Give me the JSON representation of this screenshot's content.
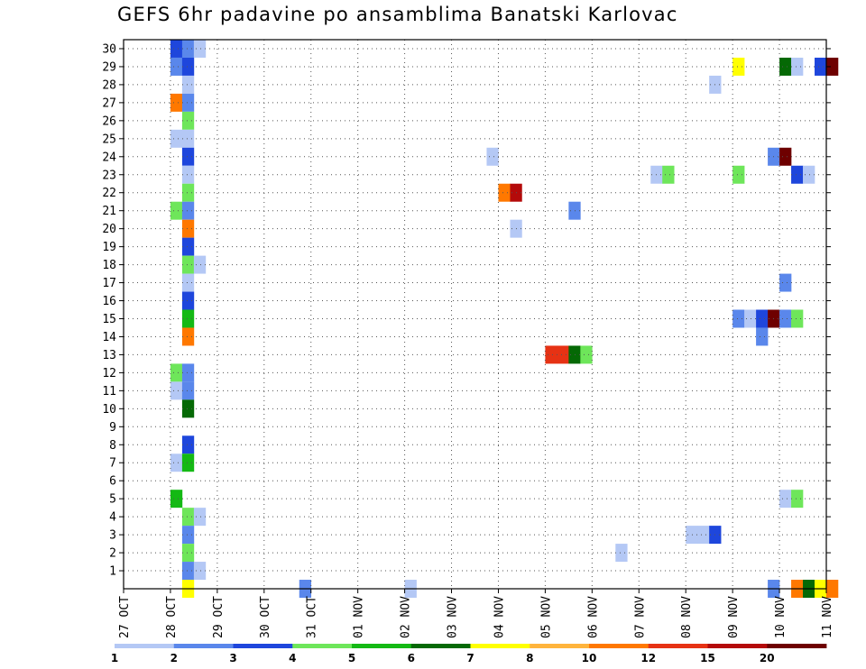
{
  "chart_data": {
    "type": "heatmap",
    "title": "GEFS 6hr padavine po ansamblima Banatski Karlovac",
    "x_tick_labels": [
      "27 OCT",
      "28 OCT",
      "29 OCT",
      "30 OCT",
      "31 OCT",
      "01 NOV",
      "02 NOV",
      "03 NOV",
      "04 NOV",
      "05 NOV",
      "06 NOV",
      "07 NOV",
      "08 NOV",
      "09 NOV",
      "10 NOV",
      "11 NOV"
    ],
    "y_tick_labels": [
      "1",
      "2",
      "3",
      "4",
      "5",
      "6",
      "7",
      "8",
      "9",
      "10",
      "11",
      "12",
      "13",
      "14",
      "15",
      "16",
      "17",
      "18",
      "19",
      "20",
      "21",
      "22",
      "23",
      "24",
      "25",
      "26",
      "27",
      "28",
      "29",
      "30"
    ],
    "xlim": [
      "27 OCT 00Z",
      "11 NOV 00Z"
    ],
    "ylim": [
      0,
      30
    ],
    "time_step_hours": 6,
    "grid": true,
    "legend": {
      "placement": "bottom",
      "labels": [
        "1",
        "2",
        "3",
        "4",
        "5",
        "6",
        "7",
        "8",
        "10",
        "12",
        "15",
        "20"
      ],
      "colors": [
        "#b4c8f5",
        "#5a87eb",
        "#1e46dc",
        "#6ee65a",
        "#14b914",
        "#056905",
        "#ffff00",
        "#ffb43c",
        "#ff7800",
        "#e63214",
        "#b40a0a",
        "#6e0000"
      ]
    },
    "cells": [
      [
        4,
        30,
        3
      ],
      [
        5,
        30,
        2
      ],
      [
        6,
        30,
        1
      ],
      [
        4,
        29,
        2
      ],
      [
        5,
        29,
        3
      ],
      [
        5,
        28,
        1
      ],
      [
        4,
        27,
        9
      ],
      [
        5,
        27,
        2
      ],
      [
        5,
        26,
        4
      ],
      [
        4,
        25,
        1
      ],
      [
        5,
        25,
        1
      ],
      [
        5,
        24,
        3
      ],
      [
        5,
        23,
        1
      ],
      [
        5,
        22,
        4
      ],
      [
        4,
        21,
        4
      ],
      [
        5,
        21,
        2
      ],
      [
        5,
        20,
        9
      ],
      [
        5,
        19,
        3
      ],
      [
        5,
        18,
        4
      ],
      [
        6,
        18,
        1
      ],
      [
        5,
        17,
        1
      ],
      [
        5,
        16,
        3
      ],
      [
        5,
        15,
        5
      ],
      [
        5,
        14,
        9
      ],
      [
        4,
        12,
        4
      ],
      [
        5,
        12,
        2
      ],
      [
        4,
        11,
        1
      ],
      [
        5,
        11,
        2
      ],
      [
        5,
        10,
        6
      ],
      [
        5,
        8,
        3
      ],
      [
        4,
        7,
        1
      ],
      [
        5,
        7,
        5
      ],
      [
        4,
        5,
        5
      ],
      [
        5,
        4,
        4
      ],
      [
        6,
        4,
        1
      ],
      [
        5,
        3,
        2
      ],
      [
        5,
        2,
        4
      ],
      [
        5,
        1,
        2
      ],
      [
        6,
        1,
        1
      ],
      [
        5,
        0,
        7
      ],
      [
        15,
        0,
        2
      ],
      [
        31,
        24,
        1
      ],
      [
        38,
        21,
        2
      ],
      [
        24,
        0,
        1
      ],
      [
        32,
        22,
        9
      ],
      [
        33,
        22,
        11
      ],
      [
        33,
        20,
        1
      ],
      [
        36,
        13,
        10
      ],
      [
        37,
        13,
        10
      ],
      [
        38,
        13,
        6
      ],
      [
        39,
        13,
        4
      ],
      [
        42,
        2,
        1
      ],
      [
        45,
        23,
        1
      ],
      [
        46,
        23,
        4
      ],
      [
        48,
        3,
        1
      ],
      [
        49,
        3,
        1
      ],
      [
        50,
        3,
        3
      ],
      [
        50,
        28,
        1
      ],
      [
        52,
        29,
        7
      ],
      [
        52,
        23,
        4
      ],
      [
        52,
        15,
        2
      ],
      [
        53,
        15,
        1
      ],
      [
        54,
        15,
        3
      ],
      [
        55,
        15,
        12
      ],
      [
        56,
        15,
        2
      ],
      [
        57,
        15,
        4
      ],
      [
        54,
        14,
        2
      ],
      [
        55,
        24,
        2
      ],
      [
        56,
        24,
        12
      ],
      [
        56,
        29,
        6
      ],
      [
        57,
        29,
        1
      ],
      [
        59,
        29,
        3
      ],
      [
        60,
        29,
        12
      ],
      [
        57,
        23,
        3
      ],
      [
        58,
        23,
        1
      ],
      [
        56,
        17,
        2
      ],
      [
        56,
        5,
        1
      ],
      [
        57,
        5,
        4
      ],
      [
        55,
        0,
        2
      ],
      [
        57,
        0,
        9
      ],
      [
        58,
        0,
        6
      ],
      [
        59,
        0,
        7
      ],
      [
        60,
        0,
        9
      ]
    ]
  }
}
